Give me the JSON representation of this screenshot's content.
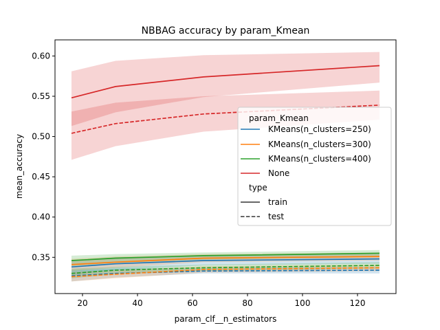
{
  "chart_data": {
    "type": "line",
    "title": "NBBAG accuracy by param_Kmean",
    "xlabel": "param_clf__n_estimators",
    "ylabel": "mean_accuracy",
    "xlim": [
      10,
      134
    ],
    "ylim": [
      0.305,
      0.62
    ],
    "xticks": [
      20,
      40,
      60,
      80,
      100,
      120
    ],
    "yticks": [
      0.35,
      0.4,
      0.45,
      0.5,
      0.55,
      0.6
    ],
    "ytick_labels": [
      "0.35",
      "0.40",
      "0.45",
      "0.50",
      "0.55",
      "0.60"
    ],
    "x": [
      16,
      32,
      64,
      128
    ],
    "grid": false,
    "legend": {
      "placement": "center-right",
      "hue_title": "param_Kmean",
      "style_title": "type",
      "hue_entries": [
        {
          "label": "KMeans(n_clusters=250)",
          "color": "#1f77b4"
        },
        {
          "label": "KMeans(n_clusters=300)",
          "color": "#ff7f0e"
        },
        {
          "label": "KMeans(n_clusters=400)",
          "color": "#2ca02c"
        },
        {
          "label": "None",
          "color": "#d62728"
        }
      ],
      "style_entries": [
        {
          "label": "train",
          "dash": "solid"
        },
        {
          "label": "test",
          "dash": "dashed"
        }
      ]
    },
    "series": [
      {
        "group": "KMeans(n_clusters=250)",
        "type": "train",
        "color": "#1f77b4",
        "values": [
          0.338,
          0.342,
          0.346,
          0.348
        ],
        "lower": [
          0.328,
          0.334,
          0.34,
          0.342
        ],
        "upper": [
          0.346,
          0.35,
          0.352,
          0.354
        ]
      },
      {
        "group": "KMeans(n_clusters=250)",
        "type": "test",
        "color": "#1f77b4",
        "values": [
          0.327,
          0.33,
          0.333,
          0.334
        ],
        "lower": [
          0.32,
          0.325,
          0.33,
          0.33
        ],
        "upper": [
          0.334,
          0.336,
          0.337,
          0.338
        ]
      },
      {
        "group": "KMeans(n_clusters=300)",
        "type": "train",
        "color": "#ff7f0e",
        "values": [
          0.341,
          0.344,
          0.349,
          0.351
        ],
        "lower": [
          0.333,
          0.337,
          0.344,
          0.346
        ],
        "upper": [
          0.348,
          0.351,
          0.354,
          0.356
        ]
      },
      {
        "group": "KMeans(n_clusters=300)",
        "type": "test",
        "color": "#ff7f0e",
        "values": [
          0.326,
          0.329,
          0.335,
          0.337
        ],
        "lower": [
          0.32,
          0.324,
          0.331,
          0.333
        ],
        "upper": [
          0.332,
          0.334,
          0.339,
          0.341
        ]
      },
      {
        "group": "KMeans(n_clusters=400)",
        "type": "train",
        "color": "#2ca02c",
        "values": [
          0.346,
          0.349,
          0.352,
          0.355
        ],
        "lower": [
          0.339,
          0.343,
          0.347,
          0.35
        ],
        "upper": [
          0.352,
          0.354,
          0.356,
          0.359
        ]
      },
      {
        "group": "KMeans(n_clusters=400)",
        "type": "test",
        "color": "#2ca02c",
        "values": [
          0.33,
          0.334,
          0.337,
          0.34
        ],
        "lower": [
          0.324,
          0.329,
          0.333,
          0.336
        ],
        "upper": [
          0.336,
          0.338,
          0.341,
          0.344
        ]
      },
      {
        "group": "None",
        "type": "train",
        "color": "#d62728",
        "values": [
          0.548,
          0.562,
          0.574,
          0.588
        ],
        "lower": [
          0.513,
          0.53,
          0.549,
          0.567
        ],
        "upper": [
          0.581,
          0.594,
          0.601,
          0.605
        ]
      },
      {
        "group": "None",
        "type": "test",
        "color": "#d62728",
        "values": [
          0.504,
          0.516,
          0.528,
          0.539
        ],
        "lower": [
          0.471,
          0.488,
          0.506,
          0.521
        ],
        "upper": [
          0.531,
          0.542,
          0.55,
          0.557
        ]
      }
    ]
  }
}
